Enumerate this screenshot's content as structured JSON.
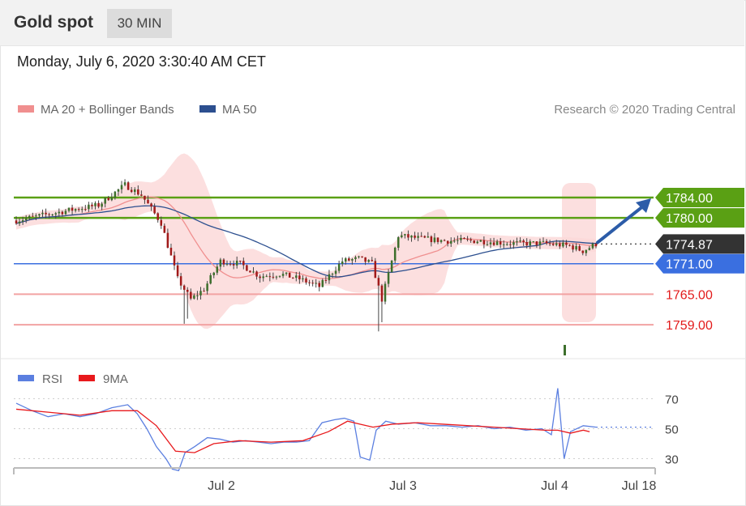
{
  "header": {
    "title": "Gold spot",
    "timeframe": "30 MIN"
  },
  "timestamp": "Monday, July 6, 2020 3:30:40 AM CET",
  "legend": {
    "items": [
      {
        "label": "MA 20 + Bollinger Bands",
        "color": "#f08f8f"
      },
      {
        "label": "MA 50",
        "color": "#2c4f8f"
      }
    ],
    "credit": "Research © 2020 Trading Central"
  },
  "rsi_legend": {
    "items": [
      {
        "label": "RSI",
        "color": "#5b7fe0"
      },
      {
        "label": "9MA",
        "color": "#e8191c"
      }
    ]
  },
  "colors": {
    "resistance": "#5aa014",
    "support": "#f2a3a3",
    "pivot": "#3a6fe0",
    "last_price": "#333333",
    "bull": "#3d6f2c",
    "bear": "#a11a1a",
    "band": "#fbd9d9",
    "arrow": "#2c5ca8"
  },
  "chart_data": [
    {
      "type": "candlestick",
      "title": "Gold spot",
      "timeframe": "30 MIN",
      "ylim": [
        1756,
        1791
      ],
      "x_ticks": [
        "Jul 2",
        "Jul 3",
        "Jul 4",
        "Jul 18"
      ],
      "levels": [
        {
          "value": 1784.0,
          "label": "1784.00",
          "kind": "resistance"
        },
        {
          "value": 1780.0,
          "label": "1780.00",
          "kind": "resistance"
        },
        {
          "value": 1774.87,
          "label": "1774.87",
          "kind": "last"
        },
        {
          "value": 1771.0,
          "label": "1771.00",
          "kind": "pivot"
        },
        {
          "value": 1765.0,
          "label": "1765.00",
          "kind": "support"
        },
        {
          "value": 1759.0,
          "label": "1759.00",
          "kind": "support"
        }
      ],
      "price_path": [
        [
          0,
          1779.5
        ],
        [
          8,
          1780.5
        ],
        [
          16,
          1781.5
        ],
        [
          25,
          1782.5
        ],
        [
          33,
          1786.5
        ],
        [
          38,
          1784.5
        ],
        [
          44,
          1779
        ],
        [
          49,
          1768
        ],
        [
          53,
          1764
        ],
        [
          57,
          1766
        ],
        [
          62,
          1771.5
        ],
        [
          68,
          1771
        ],
        [
          74,
          1768.5
        ],
        [
          80,
          1769
        ],
        [
          86,
          1768
        ],
        [
          92,
          1766.5
        ],
        [
          99,
          1771.5
        ],
        [
          104,
          1772
        ],
        [
          108,
          1771
        ],
        [
          111,
          1764
        ],
        [
          113,
          1769
        ],
        [
          116,
          1776.5
        ],
        [
          122,
          1776
        ],
        [
          130,
          1775.5
        ],
        [
          140,
          1775.5
        ],
        [
          150,
          1775
        ],
        [
          160,
          1775
        ],
        [
          168,
          1774.5
        ],
        [
          172,
          1773.5
        ],
        [
          176,
          1774.87
        ]
      ],
      "forecast": {
        "from": 1774.87,
        "to": 1784.0
      }
    },
    {
      "type": "line",
      "title": "RSI",
      "ylim": [
        20,
        80
      ],
      "y_ticks": [
        70,
        50,
        30
      ],
      "series": [
        {
          "name": "RSI",
          "points": [
            [
              0,
              67
            ],
            [
              5,
              62
            ],
            [
              10,
              58
            ],
            [
              15,
              60
            ],
            [
              20,
              58
            ],
            [
              25,
              60
            ],
            [
              30,
              64
            ],
            [
              35,
              66
            ],
            [
              38,
              60
            ],
            [
              41,
              50
            ],
            [
              44,
              38
            ],
            [
              47,
              30
            ],
            [
              49,
              23
            ],
            [
              51,
              22
            ],
            [
              53,
              34
            ],
            [
              56,
              38
            ],
            [
              60,
              44
            ],
            [
              64,
              43
            ],
            [
              68,
              41
            ],
            [
              72,
              42
            ],
            [
              76,
              41
            ],
            [
              80,
              40
            ],
            [
              84,
              41
            ],
            [
              88,
              41
            ],
            [
              92,
              42
            ],
            [
              96,
              54
            ],
            [
              100,
              56
            ],
            [
              103,
              57
            ],
            [
              106,
              55
            ],
            [
              108,
              31
            ],
            [
              111,
              29
            ],
            [
              113,
              49
            ],
            [
              116,
              55
            ],
            [
              120,
              53
            ],
            [
              125,
              54
            ],
            [
              130,
              52
            ],
            [
              135,
              52
            ],
            [
              140,
              51
            ],
            [
              145,
              52
            ],
            [
              150,
              50
            ],
            [
              155,
              51
            ],
            [
              160,
              49
            ],
            [
              165,
              50
            ],
            [
              168,
              46
            ],
            [
              170,
              77
            ],
            [
              172,
              30
            ],
            [
              174,
              48
            ],
            [
              178,
              52
            ],
            [
              182,
              51
            ]
          ]
        },
        {
          "name": "9MA",
          "points": [
            [
              0,
              63
            ],
            [
              10,
              61
            ],
            [
              20,
              59
            ],
            [
              30,
              62
            ],
            [
              38,
              62
            ],
            [
              44,
              52
            ],
            [
              50,
              35
            ],
            [
              56,
              34
            ],
            [
              62,
              40
            ],
            [
              70,
              42
            ],
            [
              80,
              41
            ],
            [
              90,
              42
            ],
            [
              98,
              48
            ],
            [
              104,
              55
            ],
            [
              108,
              53
            ],
            [
              112,
              51
            ],
            [
              118,
              53
            ],
            [
              126,
              54
            ],
            [
              134,
              53
            ],
            [
              142,
              52
            ],
            [
              150,
              51
            ],
            [
              158,
              50
            ],
            [
              166,
              49
            ],
            [
              170,
              49
            ],
            [
              174,
              47
            ],
            [
              178,
              49
            ],
            [
              180,
              48
            ]
          ]
        }
      ]
    }
  ]
}
